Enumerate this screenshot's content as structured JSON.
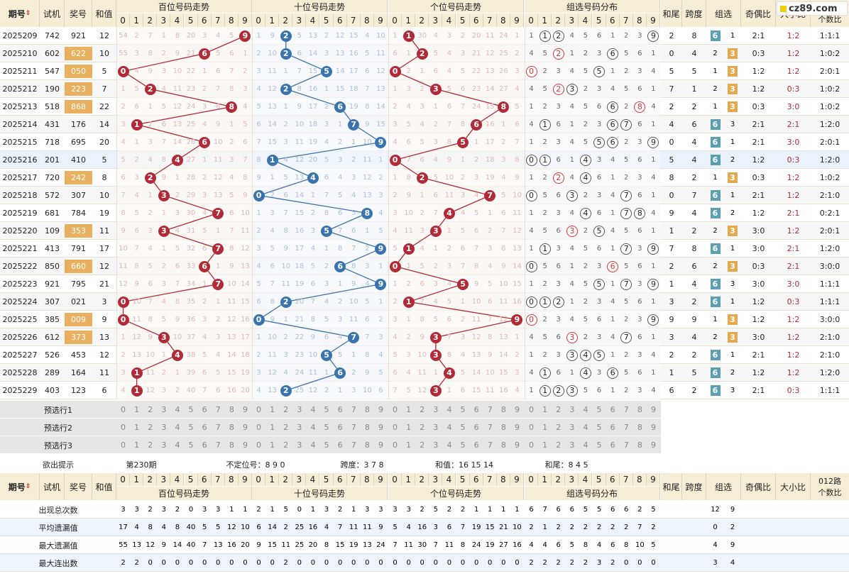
{
  "header": {
    "period": "期号",
    "sort_icon": "sort-icon",
    "trial": "试机",
    "award": "奖号",
    "sum": "和值",
    "hundreds": "百位号码走势",
    "tens": "十位号码走势",
    "units": "个位号码走势",
    "group_dist": "组选号码分布",
    "tail": "和尾",
    "span": "跨度",
    "group": "组选",
    "odd_even": "奇偶比",
    "big_small": "大小比",
    "r012": "012路",
    "r012b": "个数比",
    "site": "cz89.com"
  },
  "digits": [
    "0",
    "1",
    "2",
    "3",
    "4",
    "5",
    "6",
    "7",
    "8",
    "9"
  ],
  "colors": {
    "hundreds": "#b02a37",
    "tens": "#3a74ad",
    "units": "#b02a37",
    "award_highlight": "#e8b05f"
  },
  "rows": [
    {
      "id": "2025209",
      "trial": "742",
      "award": "921",
      "sum": "12",
      "g": 6,
      "tail": "2",
      "span": "8",
      "oe": "2:1",
      "bs": "1:2",
      "r": "1:1:1",
      "h": [
        54,
        2,
        7,
        1,
        8,
        20,
        3,
        4,
        5,
        -1
      ],
      "t": [
        1,
        9,
        -1,
        5,
        13,
        2,
        12,
        15,
        4,
        10
      ],
      "u": [
        1,
        -1,
        30,
        4,
        3,
        2,
        20,
        11,
        24,
        1
      ]
    },
    {
      "id": "2025210",
      "trial": "602",
      "award": "622",
      "sum": "10",
      "g": 3,
      "tail": "0",
      "span": "4",
      "oe": "0:3",
      "bs": "1:2",
      "r": "1:0:2",
      "h": [
        55,
        3,
        8,
        2,
        9,
        21,
        -1,
        5,
        6,
        1
      ],
      "t": [
        2,
        10,
        -1,
        6,
        14,
        3,
        13,
        16,
        5,
        11
      ],
      "u": [
        6,
        1,
        -1,
        5,
        4,
        3,
        21,
        12,
        25,
        2
      ]
    },
    {
      "id": "2025211",
      "trial": "547",
      "award": "050",
      "sum": "5",
      "g": 3,
      "tail": "5",
      "span": "5",
      "oe": "1:2",
      "bs": "1:2",
      "r": "2:0:1",
      "h": [
        -1,
        4,
        9,
        3,
        10,
        22,
        1,
        6,
        7,
        2
      ],
      "t": [
        3,
        11,
        1,
        7,
        15,
        -1,
        14,
        17,
        6,
        12
      ],
      "u": [
        -1,
        2,
        1,
        6,
        4,
        5,
        22,
        13,
        26,
        3
      ]
    },
    {
      "id": "2025212",
      "trial": "190",
      "award": "223",
      "sum": "7",
      "g": 3,
      "tail": "7",
      "span": "1",
      "oe": "1:2",
      "bs": "0:3",
      "r": "1:0:2",
      "h": [
        1,
        5,
        -1,
        4,
        11,
        23,
        2,
        7,
        8,
        3
      ],
      "t": [
        4,
        12,
        -1,
        8,
        16,
        1,
        15,
        18,
        7,
        13
      ],
      "u": [
        1,
        3,
        2,
        -1,
        5,
        6,
        23,
        14,
        27,
        4
      ]
    },
    {
      "id": "2025213",
      "trial": "518",
      "award": "868",
      "sum": "22",
      "g": 3,
      "tail": "2",
      "span": "2",
      "oe": "0:3",
      "bs": "3:0",
      "r": "1:0:2",
      "h": [
        2,
        6,
        1,
        5,
        12,
        24,
        3,
        8,
        -1,
        4
      ],
      "t": [
        5,
        13,
        1,
        9,
        17,
        2,
        -1,
        19,
        8,
        14
      ],
      "u": [
        2,
        4,
        3,
        1,
        6,
        7,
        24,
        15,
        -1,
        5
      ]
    },
    {
      "id": "2025214",
      "trial": "431",
      "award": "176",
      "sum": "14",
      "g": 6,
      "tail": "4",
      "span": "6",
      "oe": "2:1",
      "bs": "2:1",
      "r": "1:2:0",
      "h": [
        3,
        -1,
        2,
        6,
        13,
        25,
        4,
        9,
        1,
        5
      ],
      "t": [
        6,
        14,
        2,
        10,
        18,
        3,
        1,
        -1,
        9,
        15
      ],
      "u": [
        3,
        5,
        4,
        2,
        7,
        8,
        -1,
        16,
        1,
        6
      ]
    },
    {
      "id": "2025215",
      "trial": "718",
      "award": "695",
      "sum": "20",
      "g": 6,
      "tail": "0",
      "span": "4",
      "oe": "2:1",
      "bs": "3:0",
      "r": "2:0:1",
      "h": [
        4,
        1,
        3,
        7,
        14,
        26,
        -1,
        10,
        2,
        6
      ],
      "t": [
        7,
        15,
        3,
        11,
        19,
        4,
        2,
        1,
        10,
        -1
      ],
      "u": [
        4,
        6,
        5,
        3,
        8,
        -1,
        1,
        17,
        2,
        7
      ]
    },
    {
      "id": "2025216",
      "trial": "201",
      "award": "410",
      "sum": "5",
      "g": 6,
      "tail": "5",
      "span": "4",
      "oe": "1:2",
      "bs": "0:3",
      "r": "1:2:0",
      "h": [
        5,
        2,
        4,
        8,
        -1,
        27,
        1,
        11,
        3,
        7
      ],
      "t": [
        8,
        -1,
        4,
        12,
        20,
        5,
        3,
        2,
        11,
        1
      ],
      "u": [
        -1,
        7,
        6,
        4,
        9,
        1,
        2,
        18,
        3,
        8
      ]
    },
    {
      "id": "2025217",
      "trial": "720",
      "award": "242",
      "sum": "8",
      "g": 3,
      "tail": "8",
      "span": "2",
      "oe": "0:3",
      "bs": "1:2",
      "r": "1:0:2",
      "h": [
        6,
        3,
        -1,
        9,
        1,
        28,
        2,
        12,
        4,
        8
      ],
      "t": [
        9,
        1,
        5,
        13,
        -1,
        6,
        4,
        3,
        12,
        2
      ],
      "u": [
        1,
        8,
        -1,
        5,
        10,
        2,
        3,
        19,
        4,
        9
      ]
    },
    {
      "id": "2025218",
      "trial": "572",
      "award": "307",
      "sum": "10",
      "g": 6,
      "tail": "0",
      "span": "7",
      "oe": "2:1",
      "bs": "1:2",
      "r": "2:1:0",
      "h": [
        7,
        4,
        1,
        -1,
        2,
        29,
        3,
        13,
        5,
        9
      ],
      "t": [
        -1,
        2,
        6,
        14,
        1,
        7,
        5,
        4,
        13,
        3
      ],
      "u": [
        2,
        9,
        1,
        6,
        11,
        3,
        4,
        -1,
        5,
        10
      ]
    },
    {
      "id": "2025219",
      "trial": "681",
      "award": "784",
      "sum": "19",
      "g": 6,
      "tail": "9",
      "span": "4",
      "oe": "1:2",
      "bs": "2:1",
      "r": "0:2:1",
      "h": [
        8,
        5,
        2,
        1,
        3,
        30,
        4,
        -1,
        6,
        10
      ],
      "t": [
        1,
        3,
        7,
        15,
        2,
        8,
        6,
        5,
        -1,
        4
      ],
      "u": [
        3,
        10,
        2,
        7,
        -1,
        4,
        5,
        1,
        6,
        11
      ]
    },
    {
      "id": "2025220",
      "trial": "109",
      "award": "353",
      "sum": "11",
      "g": 3,
      "tail": "1",
      "span": "2",
      "oe": "3:0",
      "bs": "1:2",
      "r": "2:0:1",
      "h": [
        9,
        6,
        3,
        -1,
        4,
        31,
        5,
        1,
        7,
        11
      ],
      "t": [
        2,
        4,
        8,
        16,
        3,
        -1,
        7,
        6,
        1,
        5
      ],
      "u": [
        4,
        11,
        3,
        -1,
        1,
        5,
        6,
        2,
        7,
        12
      ]
    },
    {
      "id": "2025221",
      "trial": "413",
      "award": "791",
      "sum": "17",
      "g": 6,
      "tail": "7",
      "span": "8",
      "oe": "3:0",
      "bs": "2:1",
      "r": "1:2:0",
      "h": [
        10,
        7,
        4,
        1,
        5,
        32,
        6,
        -1,
        8,
        12
      ],
      "t": [
        3,
        5,
        9,
        17,
        4,
        1,
        8,
        7,
        2,
        -1
      ],
      "u": [
        5,
        -1,
        4,
        1,
        2,
        6,
        7,
        3,
        8,
        13
      ]
    },
    {
      "id": "2025222",
      "trial": "850",
      "award": "660",
      "sum": "12",
      "g": 3,
      "tail": "2",
      "span": "6",
      "oe": "0:3",
      "bs": "2:1",
      "r": "3:0:0",
      "h": [
        11,
        8,
        5,
        2,
        6,
        33,
        -1,
        1,
        9,
        13
      ],
      "t": [
        4,
        6,
        10,
        18,
        5,
        2,
        -1,
        8,
        3,
        1
      ],
      "u": [
        -1,
        1,
        5,
        2,
        3,
        7,
        8,
        4,
        9,
        14
      ]
    },
    {
      "id": "2025223",
      "trial": "921",
      "award": "795",
      "sum": "21",
      "g": 6,
      "tail": "1",
      "span": "4",
      "oe": "3:0",
      "bs": "3:0",
      "r": "1:1:1",
      "h": [
        12,
        9,
        6,
        3,
        7,
        34,
        1,
        -1,
        10,
        14
      ],
      "t": [
        5,
        7,
        11,
        19,
        6,
        3,
        1,
        9,
        4,
        -1
      ],
      "u": [
        1,
        2,
        6,
        3,
        4,
        -1,
        9,
        5,
        10,
        15
      ]
    },
    {
      "id": "2025224",
      "trial": "307",
      "award": "021",
      "sum": "3",
      "g": 6,
      "tail": "3",
      "span": "2",
      "oe": "1:2",
      "bs": "0:3",
      "r": "1:1:1",
      "h": [
        -1,
        10,
        7,
        4,
        8,
        35,
        2,
        1,
        11,
        15
      ],
      "t": [
        6,
        8,
        -1,
        20,
        7,
        4,
        2,
        10,
        5,
        1
      ],
      "u": [
        2,
        -1,
        7,
        4,
        5,
        1,
        10,
        6,
        11,
        16
      ]
    },
    {
      "id": "2025225",
      "trial": "385",
      "award": "009",
      "sum": "9",
      "g": 3,
      "tail": "9",
      "span": "9",
      "oe": "1:2",
      "bs": "1:2",
      "r": "3:0:0",
      "h": [
        -1,
        11,
        8,
        5,
        9,
        36,
        3,
        2,
        12,
        16
      ],
      "t": [
        -1,
        9,
        1,
        21,
        8,
        5,
        3,
        11,
        6,
        2
      ],
      "u": [
        3,
        1,
        8,
        5,
        6,
        2,
        11,
        7,
        12,
        -1
      ]
    },
    {
      "id": "2025226",
      "trial": "612",
      "award": "373",
      "sum": "13",
      "g": 3,
      "tail": "3",
      "span": "4",
      "oe": "3:0",
      "bs": "1:2",
      "r": "2:1:0",
      "h": [
        1,
        12,
        9,
        -1,
        10,
        37,
        4,
        3,
        13,
        17
      ],
      "t": [
        1,
        10,
        2,
        22,
        9,
        6,
        4,
        -1,
        7,
        3
      ],
      "u": [
        4,
        2,
        9,
        -1,
        7,
        3,
        12,
        8,
        13,
        1
      ]
    },
    {
      "id": "2025227",
      "trial": "526",
      "award": "453",
      "sum": "12",
      "g": 6,
      "tail": "2",
      "span": "2",
      "oe": "2:1",
      "bs": "1:2",
      "r": "2:1:0",
      "h": [
        2,
        13,
        10,
        1,
        -1,
        38,
        5,
        4,
        14,
        18
      ],
      "t": [
        2,
        11,
        3,
        23,
        10,
        -1,
        5,
        1,
        8,
        4
      ],
      "u": [
        5,
        3,
        10,
        -1,
        8,
        4,
        13,
        9,
        14,
        2
      ]
    },
    {
      "id": "2025228",
      "trial": "289",
      "award": "164",
      "sum": "11",
      "g": 6,
      "tail": "1",
      "span": "5",
      "oe": "1:2",
      "bs": "1:2",
      "r": "1:2:0",
      "h": [
        3,
        -1,
        11,
        2,
        1,
        39,
        6,
        5,
        15,
        19
      ],
      "t": [
        3,
        12,
        4,
        24,
        11,
        1,
        -1,
        2,
        9,
        5
      ],
      "u": [
        6,
        4,
        11,
        1,
        -1,
        5,
        14,
        10,
        15,
        3
      ]
    },
    {
      "id": "2025229",
      "trial": "403",
      "award": "123",
      "sum": "6",
      "g": 6,
      "tail": "6",
      "span": "2",
      "oe": "2:1",
      "bs": "0:3",
      "r": "1:1:1",
      "h": [
        4,
        -1,
        12,
        3,
        2,
        40,
        7,
        6,
        16,
        20
      ],
      "t": [
        4,
        13,
        -1,
        25,
        12,
        2,
        1,
        3,
        10,
        6
      ],
      "u": [
        7,
        5,
        12,
        -1,
        1,
        6,
        15,
        11,
        16,
        4
      ]
    }
  ],
  "presel": [
    "预选行1",
    "预选行2",
    "预选行3"
  ],
  "hint": {
    "label": "欲出提示",
    "period": "第230期",
    "pos": "不定位号：8 9 0",
    "span": "跨度：3 7 8",
    "sum": "和值：16 15 14",
    "tail": "和尾：8 4 5"
  },
  "stats": [
    {
      "label": "出现总次数",
      "h": [
        3,
        3,
        2,
        3,
        2,
        0,
        3,
        3,
        1,
        1
      ],
      "t": [
        2,
        1,
        5,
        0,
        1,
        3,
        2,
        1,
        3,
        3
      ],
      "u": [
        3,
        3,
        2,
        5,
        2,
        2,
        1,
        1,
        1,
        1
      ],
      "d": [
        6,
        7,
        6,
        6,
        5,
        5,
        6,
        6,
        2,
        5
      ],
      "g": [
        "12",
        "9"
      ]
    },
    {
      "label": "平均遗漏值",
      "h": [
        17,
        4,
        8,
        4,
        8,
        40,
        5,
        5,
        12,
        10
      ],
      "t": [
        6,
        14,
        2,
        25,
        16,
        4,
        7,
        11,
        11,
        9
      ],
      "u": [
        5,
        4,
        16,
        3,
        6,
        7,
        19,
        15,
        21,
        10
      ],
      "d": [
        2,
        1,
        2,
        2,
        2,
        2,
        2,
        2,
        7,
        2
      ],
      "g": [
        "0",
        "2"
      ]
    },
    {
      "label": "最大遗漏值",
      "h": [
        55,
        13,
        12,
        9,
        14,
        40,
        7,
        13,
        16,
        20
      ],
      "t": [
        9,
        15,
        11,
        25,
        20,
        8,
        15,
        19,
        13,
        24
      ],
      "u": [
        7,
        11,
        30,
        7,
        11,
        8,
        24,
        19,
        27,
        16
      ],
      "d": [
        4,
        4,
        6,
        5,
        8,
        4,
        6,
        8,
        10,
        5
      ],
      "g": [
        "4",
        "9"
      ]
    },
    {
      "label": "最大连出数",
      "h": [
        2,
        2,
        0,
        0,
        0,
        0,
        0,
        0,
        0,
        0
      ],
      "t": [
        0,
        0,
        2,
        0,
        0,
        0,
        0,
        0,
        0,
        0
      ],
      "u": [
        0,
        0,
        0,
        0,
        0,
        0,
        0,
        0,
        0,
        0
      ],
      "d": [
        2,
        2,
        2,
        2,
        2,
        3,
        2,
        0,
        0,
        0
      ],
      "g": [
        "3",
        "4"
      ]
    }
  ]
}
